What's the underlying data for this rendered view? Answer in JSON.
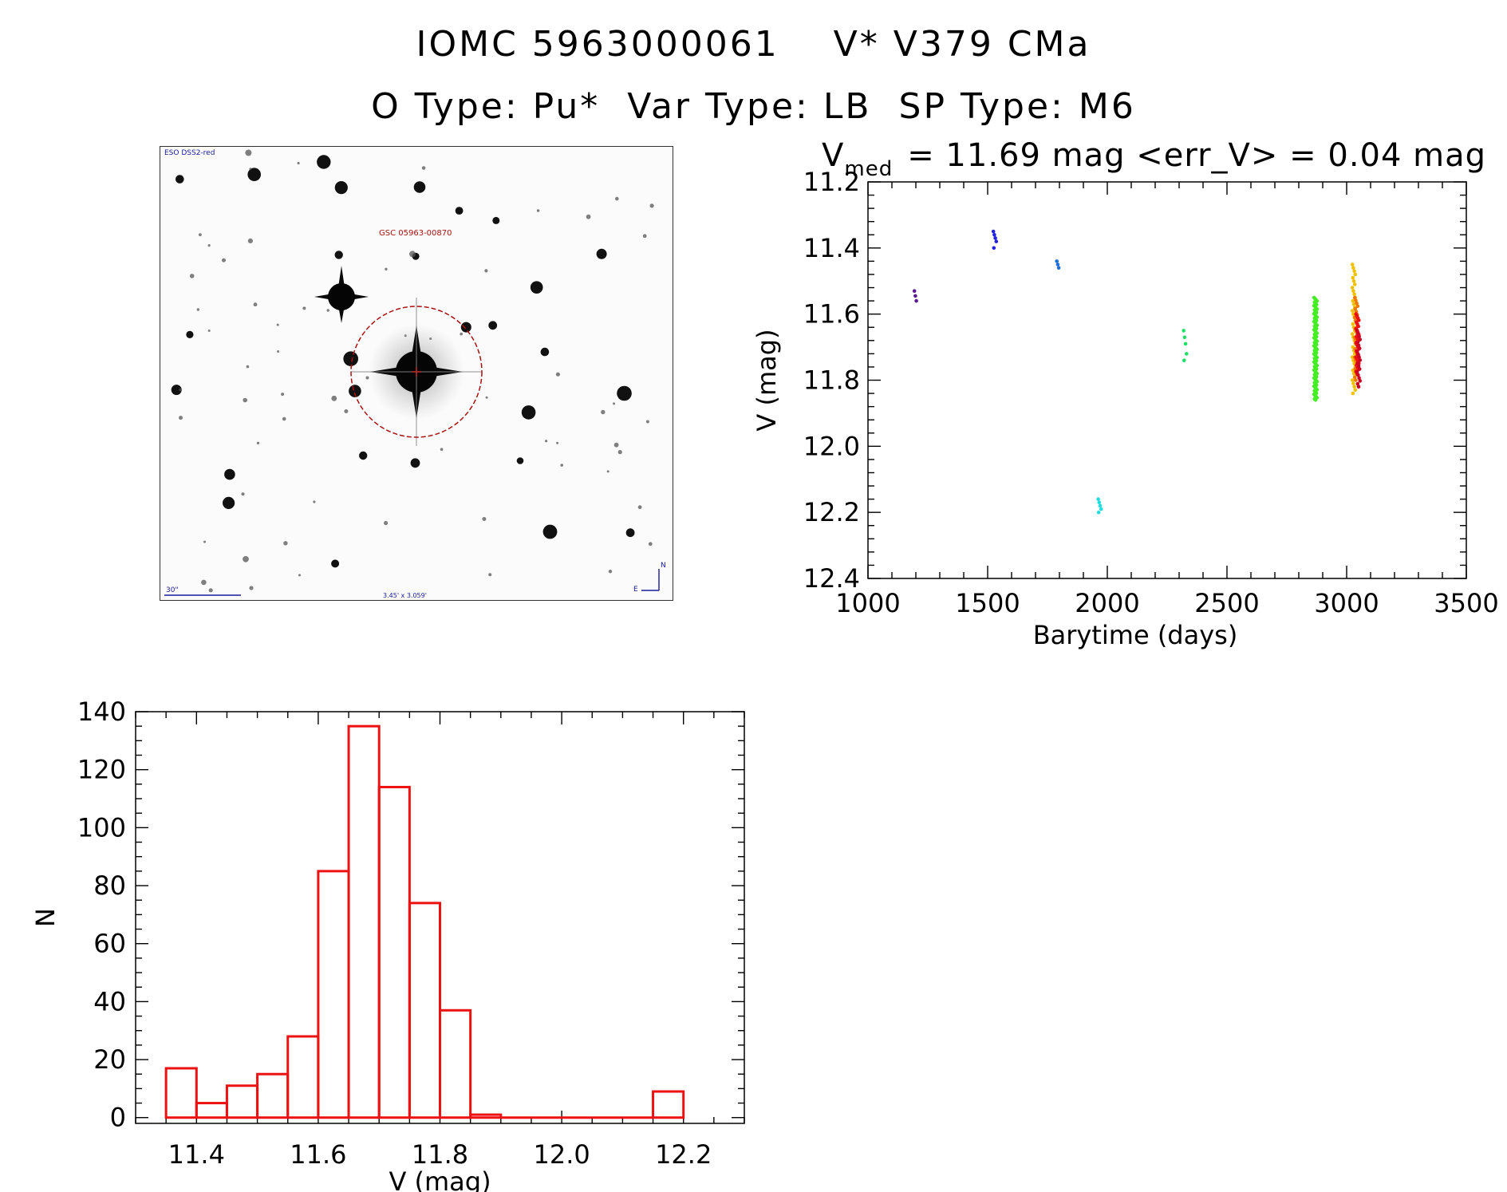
{
  "header": {
    "title_line1": "IOMC 5963000061    V* V379 CMa",
    "title_line2": "O Type: Pu*  Var Type: LB  SP Type: M6"
  },
  "finder": {
    "survey_label": "ESO DSS2-red",
    "target_label": "GSC 05963-00870",
    "scale_label": "30\"",
    "fov_label": "3.45' x 3.059'",
    "north_label": "N",
    "east_label": "E"
  },
  "colors": {
    "histogram": "#ee1111",
    "finder_circle": "#aa1111",
    "compass": "#1a1a99"
  },
  "chart_data": [
    {
      "type": "scatter",
      "title_prefix": "V",
      "title_sub": "med",
      "title_rest": "= 11.69 mag <err_V> = 0.04 mag",
      "xlabel": "Barytime (days)",
      "ylabel": "V (mag)",
      "xlim": [
        1000,
        3500
      ],
      "ylim": [
        12.4,
        11.2
      ],
      "y_inverted": true,
      "xticks": [
        "1000",
        "1500",
        "2000",
        "2500",
        "3000",
        "3500"
      ],
      "yticks": [
        "11.2",
        "11.4",
        "11.6",
        "11.8",
        "12.0",
        "12.2",
        "12.4"
      ],
      "series": [
        {
          "color": "#5b1a8f",
          "x": 1200,
          "y": [
            11.53,
            11.545,
            11.56
          ]
        },
        {
          "color": "#2222dd",
          "x": 1530,
          "y": [
            11.35,
            11.36,
            11.37,
            11.38,
            11.4
          ]
        },
        {
          "color": "#1e6fd9",
          "x": 1795,
          "y": [
            11.44,
            11.45,
            11.46
          ]
        },
        {
          "color": "#22dddd",
          "x": 1968,
          "y": [
            12.16,
            12.17,
            12.18,
            12.19,
            12.2
          ]
        },
        {
          "color": "#22dd66",
          "x": 2325,
          "y": [
            11.65,
            11.67,
            11.69,
            11.72,
            11.74
          ]
        },
        {
          "color": "#44ee22",
          "x": 2870,
          "y_min": 11.55,
          "y_max": 11.86,
          "n": 90
        },
        {
          "color": "#f0c000",
          "x": 3030,
          "y_min": 11.45,
          "y_max": 11.84,
          "n": 40
        },
        {
          "color": "#ee7700",
          "x": 3040,
          "y_min": 11.55,
          "y_max": 11.8,
          "n": 30
        },
        {
          "color": "#ee1111",
          "x": 3045,
          "y_min": 11.6,
          "y_max": 11.78,
          "n": 30
        },
        {
          "color": "#cc0022",
          "x": 3050,
          "y_min": 11.65,
          "y_max": 11.82,
          "n": 20
        }
      ]
    },
    {
      "type": "bar",
      "xlabel": "V (mag)",
      "ylabel": "N",
      "xlim": [
        11.3,
        12.3
      ],
      "ylim": [
        -2,
        140
      ],
      "bin_width": 0.05,
      "bin_starts": [
        11.35,
        11.4,
        11.45,
        11.5,
        11.55,
        11.6,
        11.65,
        11.7,
        11.75,
        11.8,
        11.85,
        11.9,
        11.95,
        12.0,
        12.05,
        12.1,
        12.15
      ],
      "values": [
        17,
        5,
        11,
        15,
        28,
        85,
        135,
        114,
        74,
        37,
        1,
        0,
        0,
        0,
        0,
        0,
        9
      ],
      "xticks": [
        "11.4",
        "11.6",
        "11.8",
        "12.0",
        "12.2"
      ],
      "yticks": [
        "0",
        "20",
        "40",
        "60",
        "80",
        "100",
        "120",
        "140"
      ]
    }
  ]
}
